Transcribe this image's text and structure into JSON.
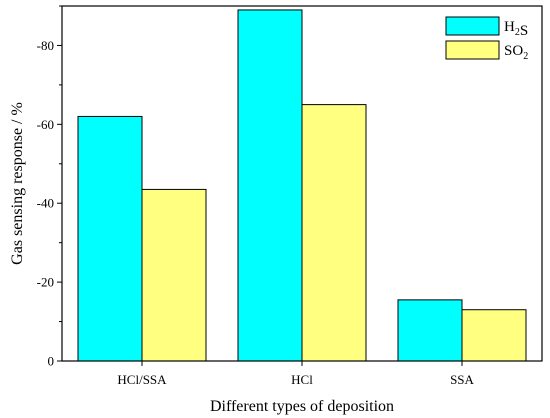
{
  "chart_data": {
    "type": "bar",
    "categories": [
      "HCl/SSA",
      "HCl",
      "SSA"
    ],
    "series": [
      {
        "name": "H2S",
        "values": [
          -62,
          -89,
          -15.5
        ],
        "color": "#00ffff"
      },
      {
        "name": "SO2",
        "values": [
          -43.5,
          -65,
          -13
        ],
        "color": "#ffff80"
      }
    ],
    "xlabel": "Different types of deposition",
    "ylabel": "Gas sensing response / %",
    "ylim": [
      0,
      -90
    ],
    "yticks": [
      0,
      -20,
      -40,
      -60,
      -80
    ],
    "ytick_labels": [
      "0",
      "-20",
      "-40",
      "-60",
      "-80"
    ],
    "legend_position": "top-right",
    "grid": false
  }
}
